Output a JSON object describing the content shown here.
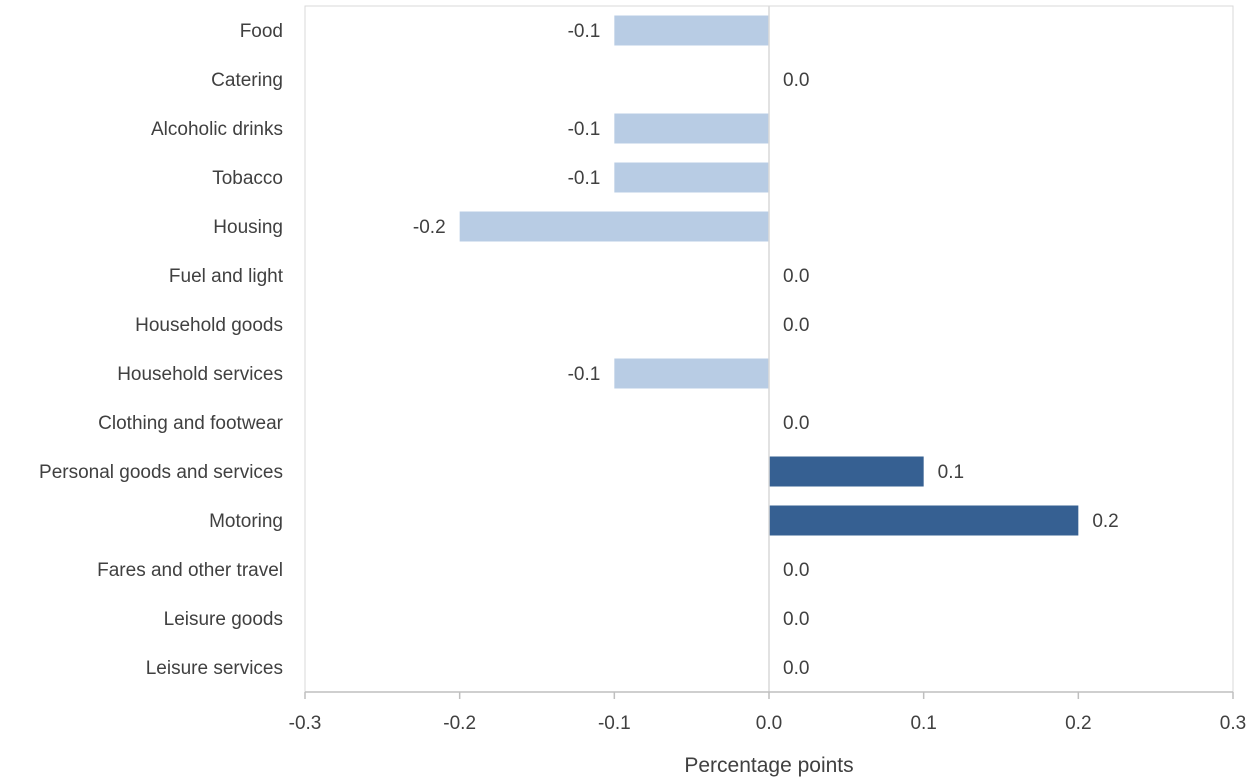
{
  "chart_data": {
    "type": "bar",
    "orientation": "horizontal",
    "categories": [
      "Food",
      "Catering",
      "Alcoholic drinks",
      "Tobacco",
      "Housing",
      "Fuel and light",
      "Household goods",
      "Household services",
      "Clothing and footwear",
      "Personal goods and services",
      "Motoring",
      "Fares and other travel",
      "Leisure goods",
      "Leisure services"
    ],
    "values": [
      -0.1,
      0.0,
      -0.1,
      -0.1,
      -0.2,
      0.0,
      0.0,
      -0.1,
      0.0,
      0.1,
      0.2,
      0.0,
      0.0,
      0.0
    ],
    "data_labels": [
      "-0.1",
      "0.0",
      "-0.1",
      "-0.1",
      "-0.2",
      "0.0",
      "0.0",
      "-0.1",
      "0.0",
      "0.1",
      "0.2",
      "0.0",
      "0.0",
      "0.0"
    ],
    "xlabel": "Percentage points",
    "ylabel": "",
    "xlim": [
      -0.3,
      0.3
    ],
    "xticks": [
      -0.3,
      -0.2,
      -0.1,
      0.0,
      0.1,
      0.2,
      0.3
    ],
    "xtick_labels": [
      "-0.3",
      "-0.2",
      "-0.1",
      "0.0",
      "0.1",
      "0.2",
      "0.3"
    ],
    "grid": false,
    "legend": "none",
    "colors": {
      "negative": "#b8cce4",
      "positive": "#366092",
      "frame": "#d9d9d9",
      "axis": "#bfbfbf",
      "text": "#404040"
    }
  }
}
